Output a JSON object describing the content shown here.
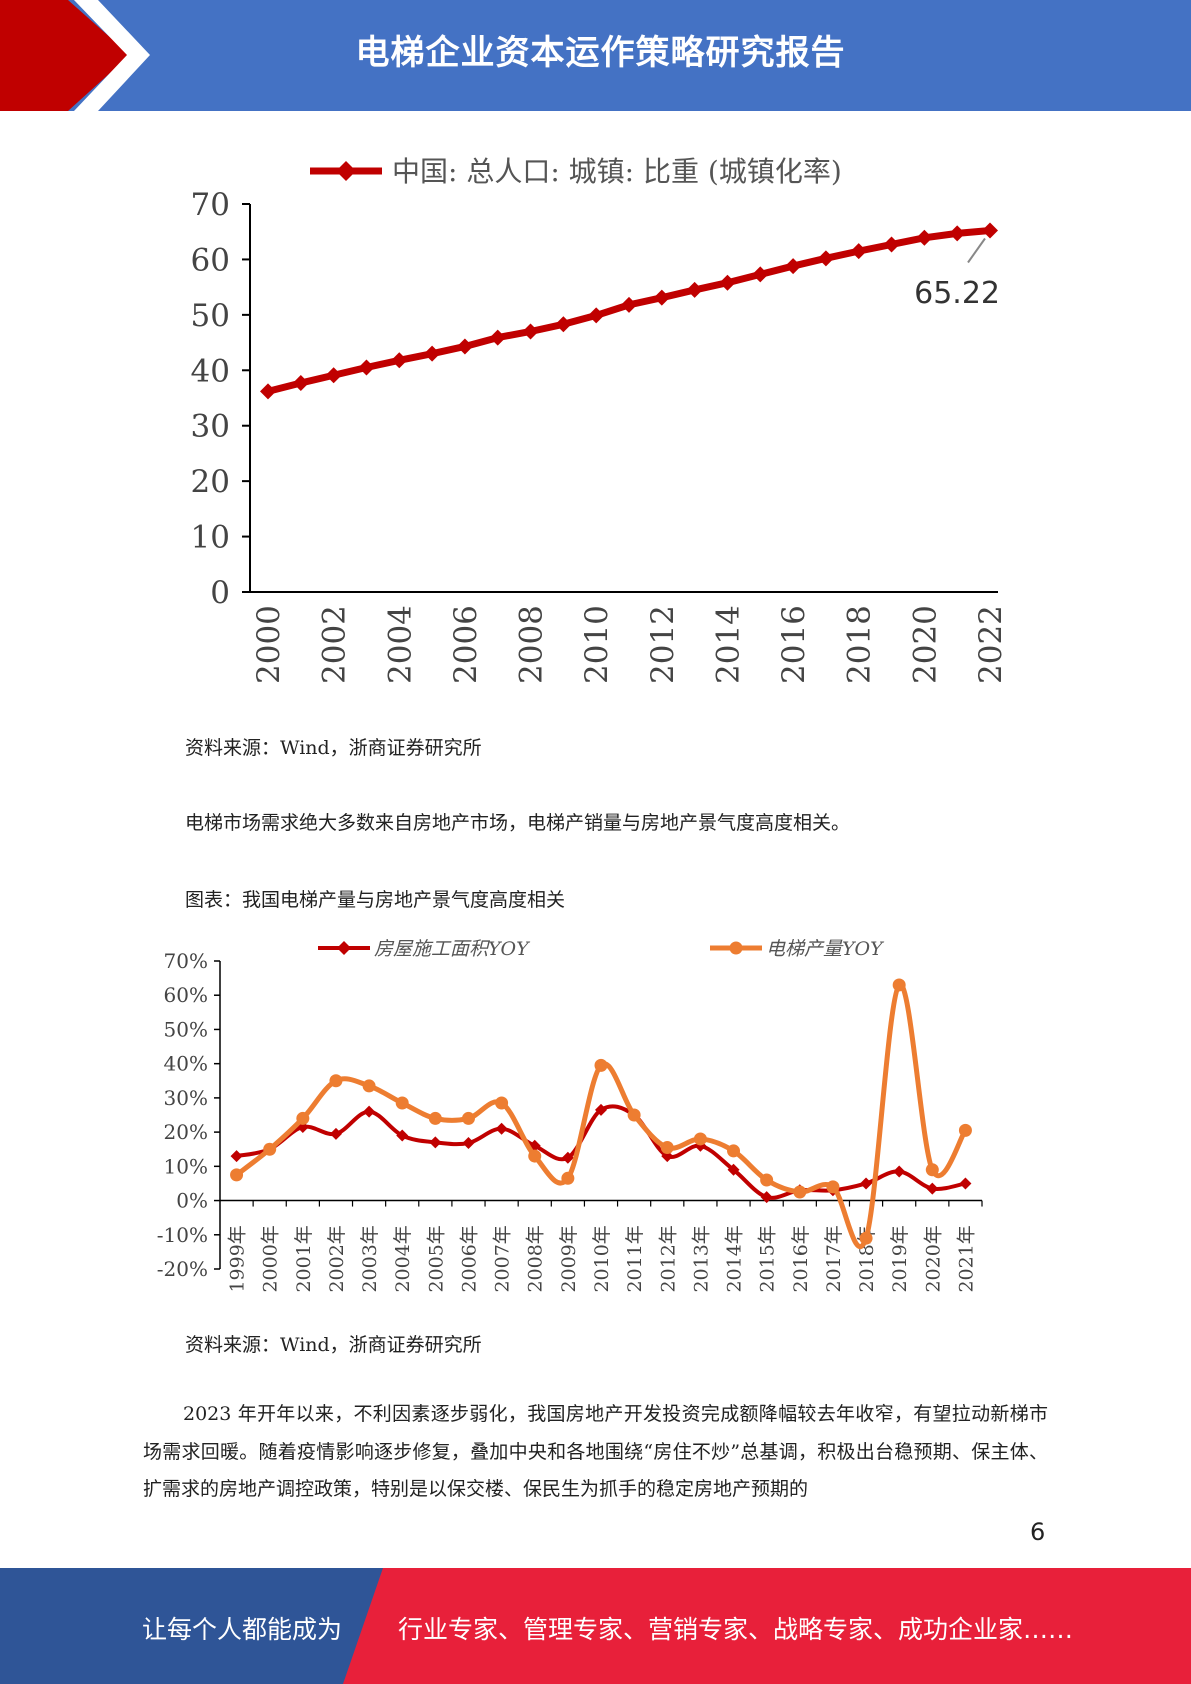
{
  "header": {
    "title": "电梯企业资本运作策略研究报告",
    "colors": {
      "background": "#4472c4",
      "accent": "#c00000"
    }
  },
  "chart1_source": "资料来源：Wind，浙商证券研究所",
  "intro_text": "电梯市场需求绝大多数来自房地产市场，电梯产销量与房地产景气度高度相关。",
  "chart2_caption": "图表：我国电梯产量与房地产景气度高度相关",
  "chart2_source": "资料来源：Wind，浙商证券研究所",
  "body_paragraph": "2023 年开年以来，不利因素逐步弱化，我国房地产开发投资完成额降幅较去年收窄，有望拉动新梯市场需求回暖。随着疫情影响逐步修复，叠加中央和各地围绕“房住不炒”总基调，积极出台稳预期、保主体、扩需求的房地产调控政策，特别是以保交楼、保民生为抓手的稳定房地产预期的",
  "page_number": "6",
  "footer": {
    "left_text": "让每个人都能成为",
    "right_text": "行业专家、管理专家、营销专家、战略专家、成功企业家……",
    "colors": {
      "left": "#2f5597",
      "right": "#e8203a"
    }
  },
  "chart_data": [
    {
      "type": "line",
      "legend": [
        "中国: 总人口: 城镇: 比重 (城镇化率)"
      ],
      "legend_position": "top-center",
      "x": [
        2000,
        2001,
        2002,
        2003,
        2004,
        2005,
        2006,
        2007,
        2008,
        2009,
        2010,
        2011,
        2012,
        2013,
        2014,
        2015,
        2016,
        2017,
        2018,
        2019,
        2020,
        2021,
        2022
      ],
      "x_tick_labels": [
        "2000",
        "2002",
        "2004",
        "2006",
        "2008",
        "2010",
        "2012",
        "2014",
        "2016",
        "2018",
        "2020",
        "2022"
      ],
      "series": [
        {
          "name": "中国: 总人口: 城镇: 比重 (城镇化率)",
          "color": "#c00000",
          "values": [
            36.2,
            37.7,
            39.1,
            40.5,
            41.8,
            43.0,
            44.3,
            45.9,
            47.0,
            48.3,
            49.9,
            51.8,
            53.1,
            54.5,
            55.8,
            57.3,
            58.8,
            60.2,
            61.5,
            62.7,
            63.9,
            64.7,
            65.22
          ]
        }
      ],
      "annotation": "65.22",
      "ylim": [
        0,
        70
      ],
      "y_ticks": [
        0,
        10,
        20,
        30,
        40,
        50,
        60,
        70
      ],
      "grid": false
    },
    {
      "type": "line",
      "categories": [
        "1999年",
        "2000年",
        "2001年",
        "2002年",
        "2003年",
        "2004年",
        "2005年",
        "2006年",
        "2007年",
        "2008年",
        "2009年",
        "2010年",
        "2011年",
        "2012年",
        "2013年",
        "2014年",
        "2015年",
        "2016年",
        "2017年",
        "2018年",
        "2019年",
        "2020年",
        "2021年"
      ],
      "legend_position": "top",
      "series": [
        {
          "name": "房屋施工面积YOY",
          "color": "#c00000",
          "marker": "diamond",
          "values": [
            13.0,
            15.0,
            21.5,
            19.5,
            26.0,
            19.0,
            17.0,
            16.8,
            21.0,
            16.0,
            12.5,
            26.5,
            25.0,
            13.0,
            16.0,
            9.0,
            1.0,
            3.0,
            3.0,
            5.0,
            8.5,
            3.5,
            5.0
          ]
        },
        {
          "name": "电梯产量YOY",
          "color": "#ed7d31",
          "marker": "circle",
          "values": [
            7.5,
            15.0,
            24.0,
            35.0,
            33.5,
            28.5,
            24.0,
            24.0,
            28.5,
            13.0,
            6.5,
            39.5,
            25.0,
            15.5,
            18.0,
            14.5,
            6.0,
            2.5,
            4.0,
            -11.0,
            63.0,
            9.0,
            20.5
          ]
        }
      ],
      "ylim": [
        -20,
        70
      ],
      "y_ticks": [
        "-20%",
        "-10%",
        "0%",
        "10%",
        "20%",
        "30%",
        "40%",
        "50%",
        "60%",
        "70%"
      ],
      "grid": false
    }
  ]
}
